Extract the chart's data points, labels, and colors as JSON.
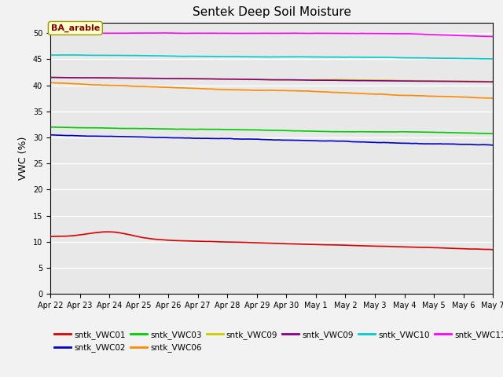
{
  "title": "Sentek Deep Soil Moisture",
  "ylabel": "VWC (%)",
  "ylim": [
    0,
    52
  ],
  "yticks": [
    0,
    5,
    10,
    15,
    20,
    25,
    30,
    35,
    40,
    45,
    50
  ],
  "date_labels": [
    "Apr 22",
    "Apr 23",
    "Apr 24",
    "Apr 25",
    "Apr 26",
    "Apr 27",
    "Apr 28",
    "Apr 29",
    "Apr 30",
    "May 1",
    "May 2",
    "May 3",
    "May 4",
    "May 5",
    "May 6",
    "May 7"
  ],
  "n_points": 16,
  "bg_color": "#e8e8e8",
  "grid_color": "#ffffff",
  "fig_bg_color": "#f2f2f2",
  "title_fontsize": 11,
  "annotation_text": "BA_arable",
  "legend_entries": [
    {
      "label": "sntk_VWC01",
      "color": "#dd0000"
    },
    {
      "label": "sntk_VWC02",
      "color": "#0000cc"
    },
    {
      "label": "sntk_VWC03",
      "color": "#00cc00"
    },
    {
      "label": "sntk_VWC06",
      "color": "#ff8800"
    },
    {
      "label": "sntk_VWC09",
      "color": "#cccc00"
    },
    {
      "label": "sntk_VWC09",
      "color": "#880088"
    },
    {
      "label": "sntk_VWC10",
      "color": "#00cccc"
    },
    {
      "label": "sntk_VWC11",
      "color": "#ff00ff"
    }
  ]
}
